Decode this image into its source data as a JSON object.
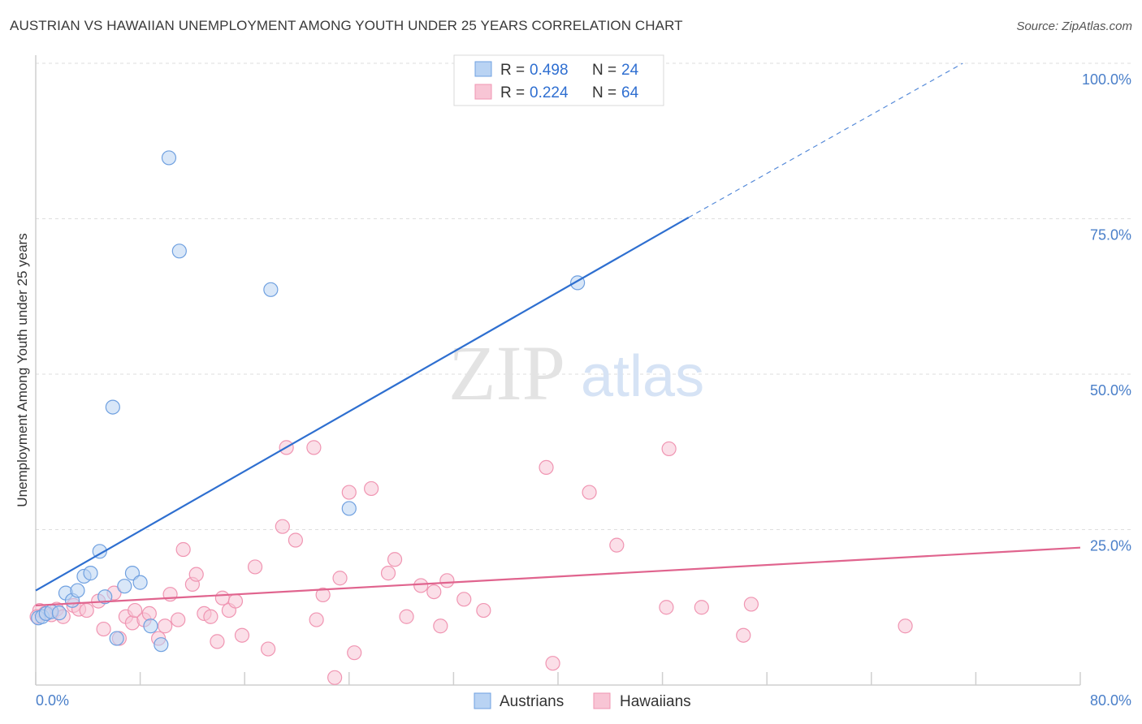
{
  "chart_data": {
    "type": "scatter",
    "title": "AUSTRIAN VS HAWAIIAN UNEMPLOYMENT AMONG YOUTH UNDER 25 YEARS CORRELATION CHART",
    "source": "Source: ZipAtlas.com",
    "xlabel": "",
    "ylabel": "Unemployment Among Youth under 25 years",
    "xlim": [
      0,
      80
    ],
    "ylim": [
      0,
      100
    ],
    "x_tick_labels": [
      "0.0%",
      "80.0%"
    ],
    "y_tick_labels": [
      "100.0%",
      "75.0%",
      "50.0%",
      "25.0%"
    ],
    "y_tick_values": [
      100,
      75,
      50,
      25
    ],
    "watermark": {
      "zip": "ZIP",
      "atlas": "atlas"
    },
    "legend": {
      "rows": [
        {
          "r_label": "R =",
          "r_value": "0.498",
          "n_label": "N =",
          "n_value": "24"
        },
        {
          "r_label": "R =",
          "r_value": "0.224",
          "n_label": "N =",
          "n_value": "64"
        }
      ]
    },
    "series": [
      {
        "name": "Austrians",
        "color": "#6fa0e0",
        "fill": "#b9d3f3",
        "line_color": "#2e6fd0",
        "trend": {
          "x0": 0,
          "y0": 15.2,
          "x1": 50,
          "y1": 75.2,
          "dashed_to_x": 71,
          "dashed_to_y": 100
        },
        "points": [
          [
            0.2,
            10.8
          ],
          [
            0.5,
            11.0
          ],
          [
            0.8,
            11.5
          ],
          [
            1.2,
            11.8
          ],
          [
            1.8,
            11.6
          ],
          [
            2.3,
            14.8
          ],
          [
            2.8,
            13.6
          ],
          [
            3.2,
            15.2
          ],
          [
            3.7,
            17.5
          ],
          [
            4.2,
            18.0
          ],
          [
            4.9,
            21.5
          ],
          [
            5.3,
            14.2
          ],
          [
            5.9,
            44.7
          ],
          [
            6.2,
            7.5
          ],
          [
            6.8,
            15.9
          ],
          [
            7.4,
            18.0
          ],
          [
            8.0,
            16.5
          ],
          [
            8.8,
            9.5
          ],
          [
            9.6,
            6.5
          ],
          [
            10.2,
            84.8
          ],
          [
            11.0,
            69.8
          ],
          [
            18.0,
            63.6
          ],
          [
            24.0,
            28.4
          ],
          [
            41.5,
            64.7
          ]
        ]
      },
      {
        "name": "Hawaiians",
        "color": "#f095b2",
        "fill": "#f8c5d5",
        "line_color": "#e0648e",
        "trend": {
          "x0": 0,
          "y0": 12.8,
          "x1": 80,
          "y1": 22.1
        },
        "points": [
          [
            0.3,
            12.0
          ],
          [
            0.7,
            11.5
          ],
          [
            1.2,
            11.3
          ],
          [
            1.6,
            12.2
          ],
          [
            2.1,
            11.0
          ],
          [
            2.9,
            12.8
          ],
          [
            3.3,
            12.2
          ],
          [
            3.9,
            12.0
          ],
          [
            4.8,
            13.5
          ],
          [
            5.2,
            9.0
          ],
          [
            6.0,
            14.8
          ],
          [
            6.4,
            7.5
          ],
          [
            6.9,
            11.0
          ],
          [
            7.4,
            10.0
          ],
          [
            7.6,
            12.0
          ],
          [
            8.3,
            10.5
          ],
          [
            8.7,
            11.5
          ],
          [
            9.4,
            7.5
          ],
          [
            9.9,
            9.5
          ],
          [
            10.3,
            14.6
          ],
          [
            10.9,
            10.5
          ],
          [
            11.3,
            21.8
          ],
          [
            12.0,
            16.2
          ],
          [
            12.3,
            17.8
          ],
          [
            12.9,
            11.5
          ],
          [
            13.4,
            11.0
          ],
          [
            13.9,
            7.0
          ],
          [
            14.3,
            14.0
          ],
          [
            14.8,
            12.0
          ],
          [
            15.3,
            13.5
          ],
          [
            15.8,
            8.0
          ],
          [
            16.8,
            19.0
          ],
          [
            17.8,
            5.8
          ],
          [
            18.9,
            25.5
          ],
          [
            19.2,
            38.2
          ],
          [
            19.9,
            23.3
          ],
          [
            21.3,
            38.2
          ],
          [
            21.5,
            10.5
          ],
          [
            22.0,
            14.5
          ],
          [
            22.9,
            1.2
          ],
          [
            23.3,
            17.2
          ],
          [
            24.0,
            31.0
          ],
          [
            24.4,
            5.2
          ],
          [
            25.7,
            31.6
          ],
          [
            27.0,
            18.0
          ],
          [
            27.5,
            20.2
          ],
          [
            28.4,
            11.0
          ],
          [
            29.5,
            16.0
          ],
          [
            30.5,
            15.0
          ],
          [
            31.0,
            9.5
          ],
          [
            31.5,
            16.8
          ],
          [
            32.8,
            13.8
          ],
          [
            34.3,
            12.0
          ],
          [
            39.1,
            35.0
          ],
          [
            39.6,
            3.5
          ],
          [
            42.4,
            31.0
          ],
          [
            44.5,
            22.5
          ],
          [
            48.3,
            12.5
          ],
          [
            48.5,
            38.0
          ],
          [
            51.0,
            12.5
          ],
          [
            54.2,
            8.0
          ],
          [
            54.8,
            13.0
          ],
          [
            66.6,
            9.5
          ],
          [
            0.1,
            11.0
          ]
        ]
      }
    ]
  }
}
